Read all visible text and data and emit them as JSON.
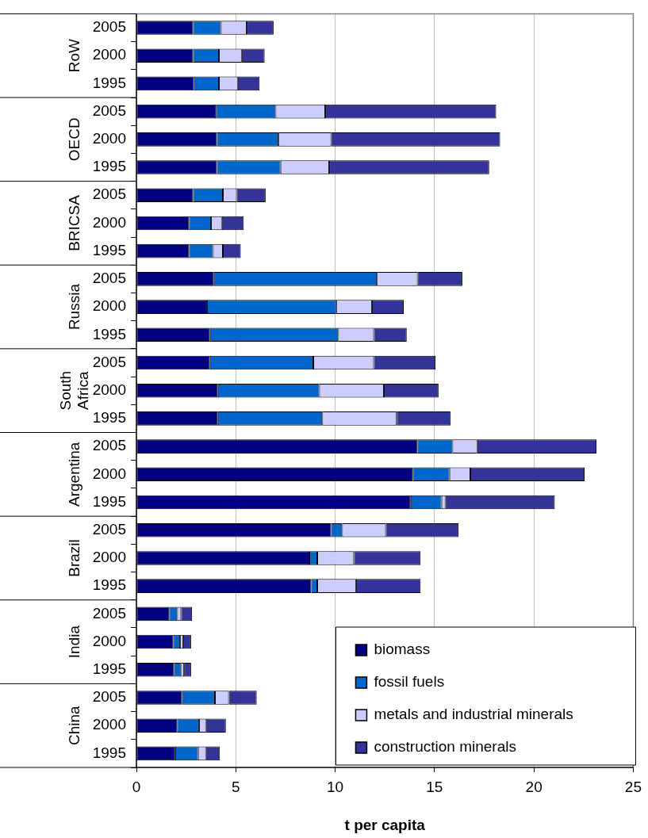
{
  "chart_data": {
    "type": "bar",
    "orientation": "horizontal",
    "stacked": true,
    "xlabel": "t per capita",
    "categories": [
      "2005",
      "2000",
      "1995",
      "2005",
      "2000",
      "1995",
      "2005",
      "2000",
      "1995",
      "2005",
      "2000",
      "1995",
      "2005",
      "2000",
      "1995",
      "2005",
      "2000",
      "1995",
      "2005",
      "2000",
      "1995",
      "2005",
      "2000",
      "1995",
      "2005",
      "2000",
      "1995"
    ],
    "annotations": [
      "RoW",
      "OECD",
      "BRICSA",
      "Russia",
      "South Africa",
      "Argentina",
      "Brazil",
      "India",
      "China"
    ],
    "series": [
      {
        "name": "biomass",
        "color": "#000080",
        "values": [
          2.85,
          2.85,
          2.9,
          4.0,
          4.05,
          4.05,
          2.85,
          2.65,
          2.65,
          3.9,
          3.55,
          3.7,
          3.7,
          4.1,
          4.1,
          14.15,
          13.9,
          13.8,
          9.8,
          8.7,
          8.8,
          1.65,
          1.85,
          1.9,
          2.3,
          2.05,
          1.95
        ]
      },
      {
        "name": "fossil fuels",
        "color": "#0066cc",
        "values": [
          1.4,
          1.3,
          1.25,
          3.0,
          3.1,
          3.2,
          1.5,
          1.1,
          1.2,
          8.2,
          6.5,
          6.45,
          5.2,
          5.1,
          5.25,
          1.75,
          1.85,
          1.55,
          0.55,
          0.4,
          0.3,
          0.4,
          0.35,
          0.35,
          1.65,
          1.1,
          1.15
        ]
      },
      {
        "name": "metals and industrial minerals",
        "color": "#ccccff",
        "values": [
          1.3,
          1.15,
          0.95,
          2.5,
          2.65,
          2.45,
          0.7,
          0.55,
          0.5,
          2.05,
          1.8,
          1.8,
          3.05,
          3.25,
          3.75,
          1.25,
          1.05,
          0.2,
          2.2,
          1.85,
          1.95,
          0.2,
          0.15,
          0.15,
          0.7,
          0.35,
          0.4
        ]
      },
      {
        "name": "construction minerals",
        "color": "#333399",
        "values": [
          1.35,
          1.15,
          1.1,
          8.6,
          8.5,
          8.05,
          1.45,
          1.1,
          0.9,
          2.25,
          1.6,
          1.65,
          3.1,
          2.75,
          2.7,
          6.0,
          5.75,
          5.5,
          3.65,
          3.35,
          3.25,
          0.55,
          0.4,
          0.35,
          1.4,
          1.0,
          0.7
        ]
      }
    ],
    "xlim": [
      0,
      25
    ],
    "xticks": [
      0,
      5,
      10,
      15,
      20,
      25
    ],
    "grid": "x",
    "legend": "bottom right"
  }
}
